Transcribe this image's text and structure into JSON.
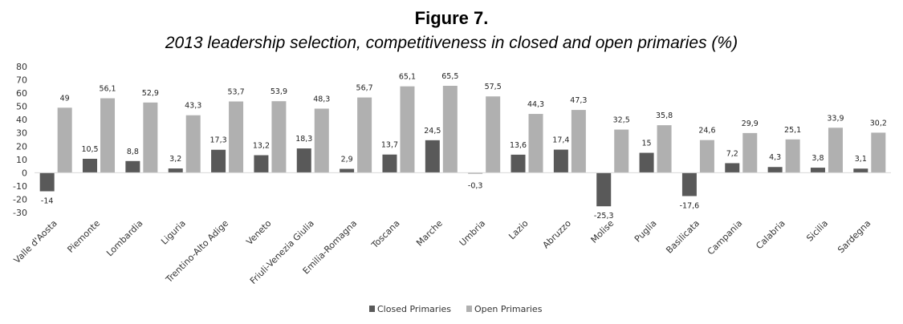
{
  "figure": {
    "label": "Figure 7.",
    "title": "2013 leadership selection, competitiveness in closed and open primaries (%)"
  },
  "chart_data": {
    "type": "bar",
    "categories": [
      "Valle d'Aosta",
      "Piemonte",
      "Lombardia",
      "Liguria",
      "Trentino-Alto Adige",
      "Veneto",
      "Friuli-Venezia Giulia",
      "Emilia-Romagna",
      "Toscana",
      "Marche",
      "Umbria",
      "Lazio",
      "Abruzzo",
      "Molise",
      "Puglia",
      "Basilicata",
      "Campania",
      "Calabria",
      "Sicilia",
      "Sardegna"
    ],
    "series": [
      {
        "name": "Closed Primaries",
        "color": "#595959",
        "values": [
          -14,
          10.5,
          8.8,
          3.2,
          17.3,
          13.2,
          18.3,
          2.9,
          13.7,
          24.5,
          -0.3,
          13.6,
          17.4,
          -25.3,
          15,
          -17.6,
          7.2,
          4.3,
          3.8,
          3.1
        ],
        "labels": [
          "-14",
          "10,5",
          "8,8",
          "3,2",
          "17,3",
          "13,2",
          "18,3",
          "2,9",
          "13,7",
          "24,5",
          "-0,3",
          "13,6",
          "17,4",
          "-25,3",
          "15",
          "-17,6",
          "7,2",
          "4,3",
          "3,8",
          "3,1"
        ]
      },
      {
        "name": "Open Primaries",
        "color": "#b0b0b0",
        "values": [
          49,
          56.1,
          52.9,
          43.3,
          53.7,
          53.9,
          48.3,
          56.7,
          65.1,
          65.5,
          57.5,
          44.3,
          47.3,
          32.5,
          35.8,
          24.6,
          29.9,
          25.1,
          33.9,
          30.2
        ],
        "labels": [
          "49",
          "56,1",
          "52,9",
          "43,3",
          "53,7",
          "53,9",
          "48,3",
          "56,7",
          "65,1",
          "65,5",
          "57,5",
          "44,3",
          "47,3",
          "32,5",
          "35,8",
          "24,6",
          "29,9",
          "25,1",
          "33,9",
          "30,2"
        ]
      }
    ],
    "ylim": [
      -30,
      80
    ],
    "yticks": [
      -30,
      -20,
      -10,
      0,
      10,
      20,
      30,
      40,
      50,
      60,
      70,
      80
    ],
    "xlabel": "",
    "ylabel": "",
    "grid": false,
    "legend": "bottom",
    "data_labels": true
  }
}
